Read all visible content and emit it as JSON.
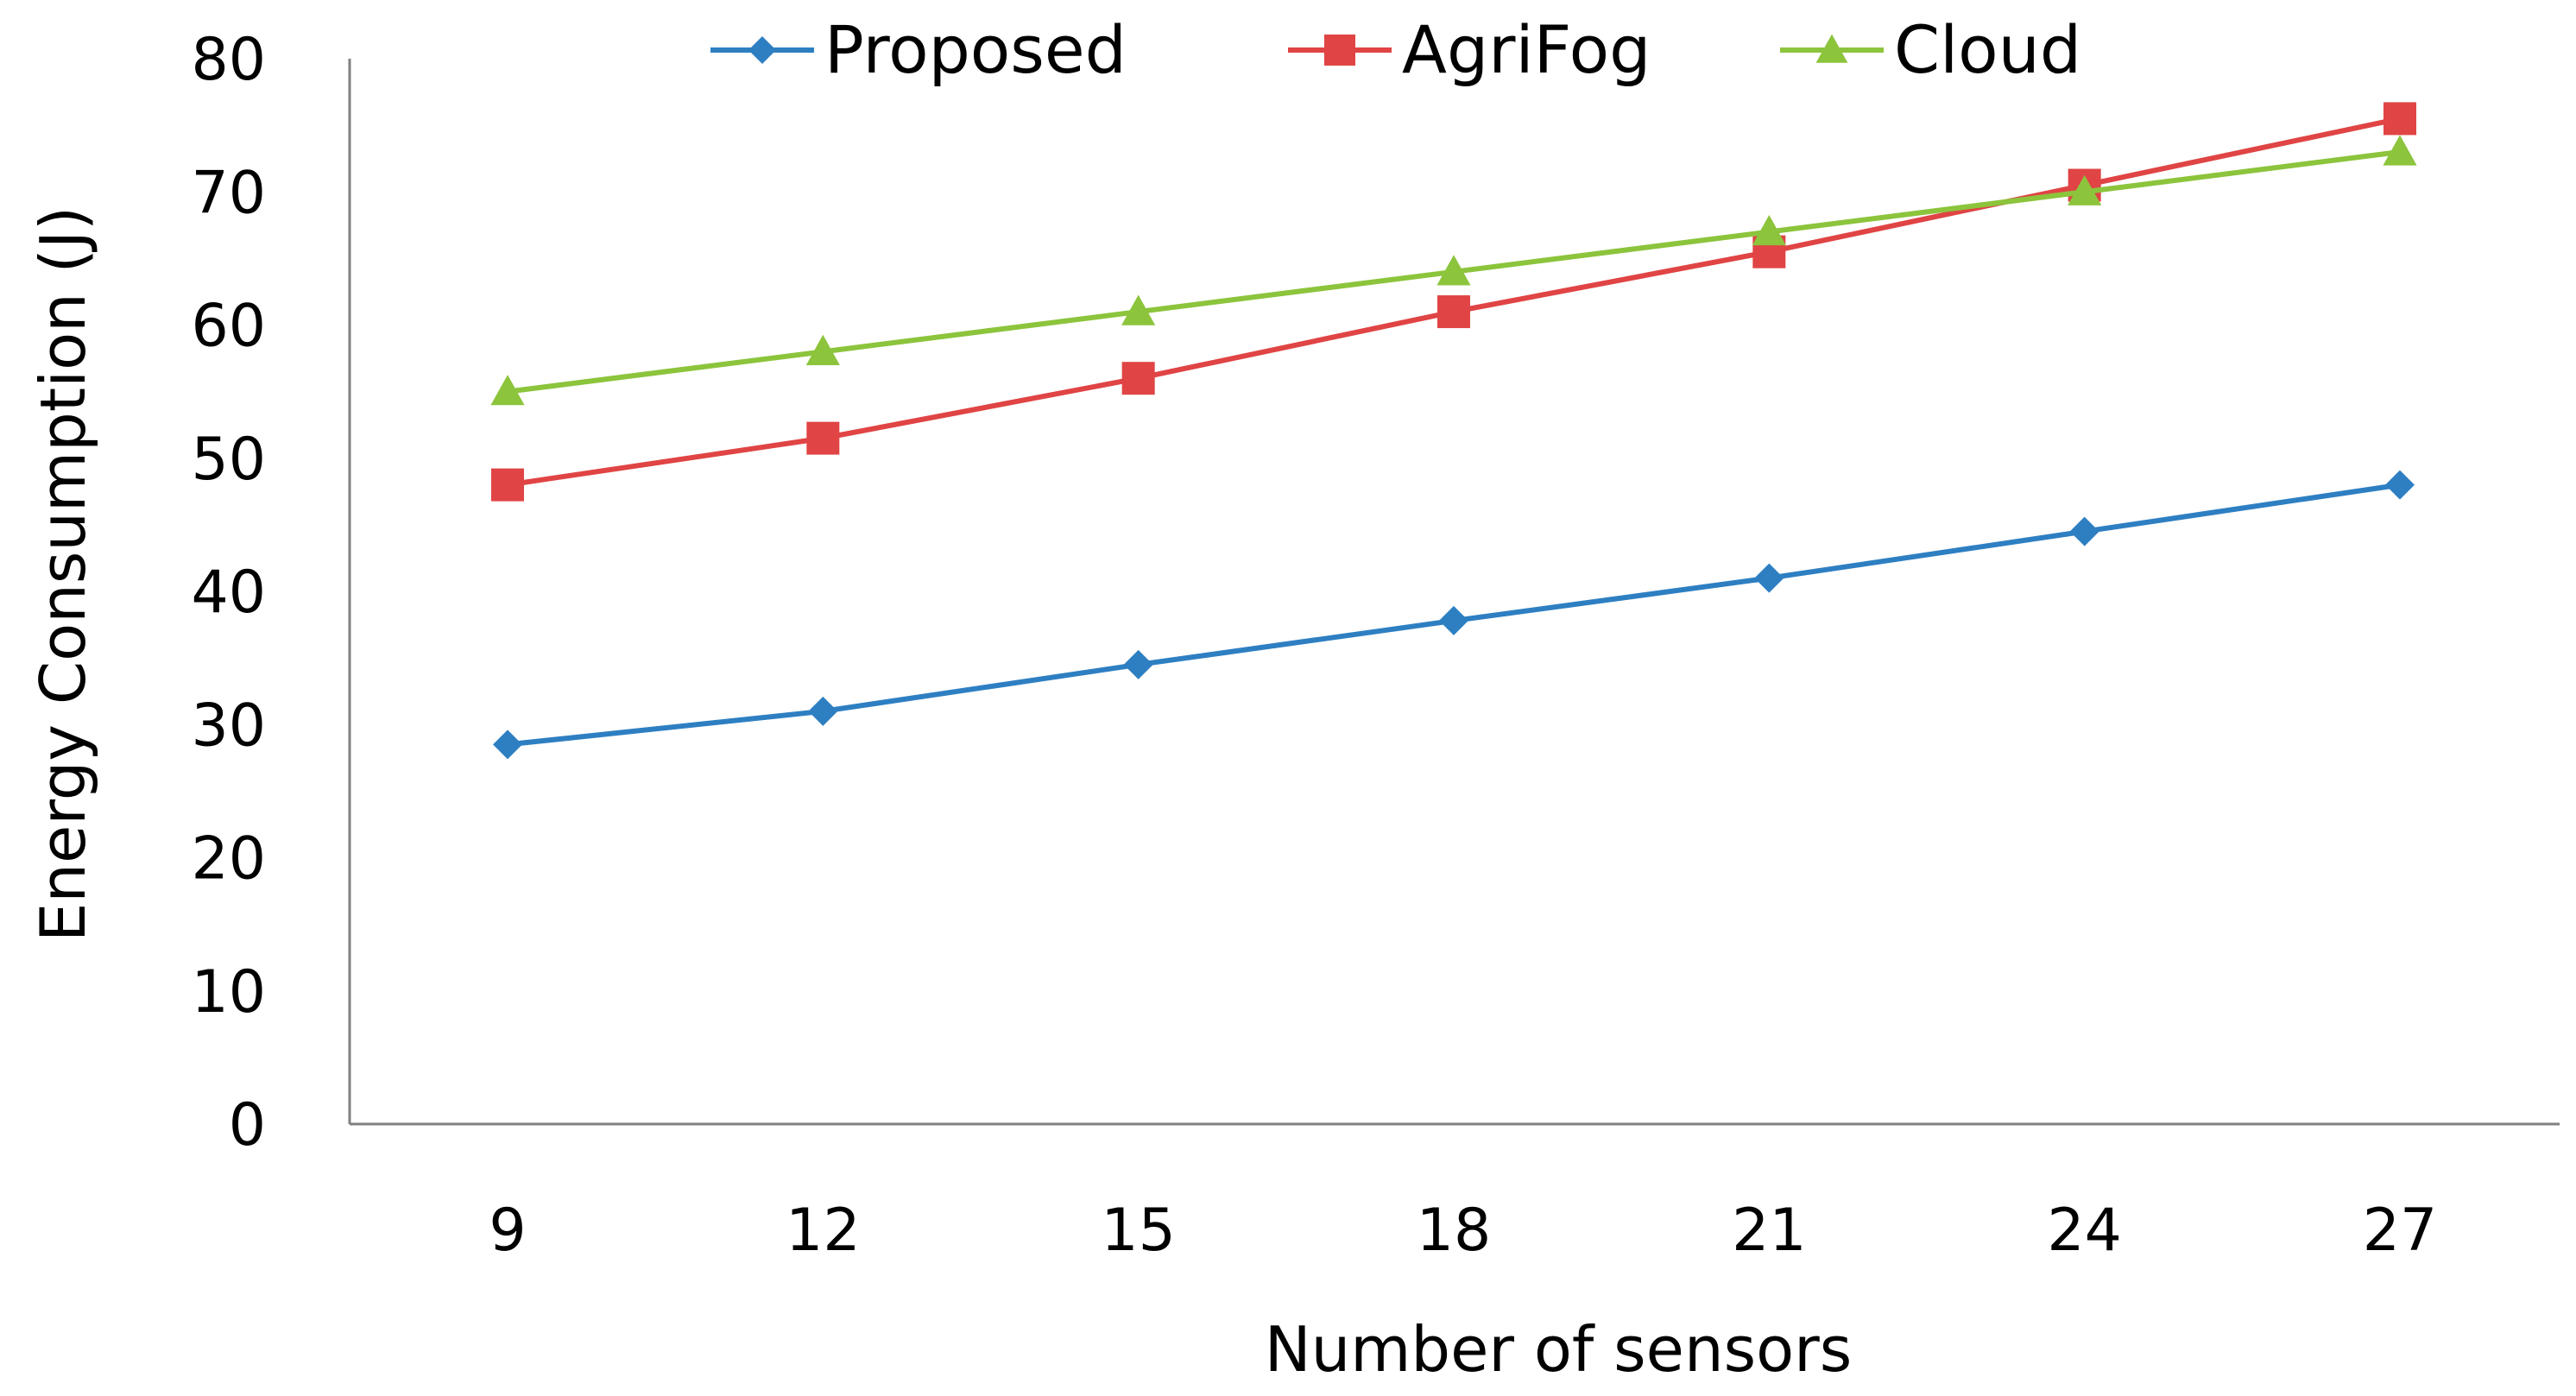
{
  "chart_data": {
    "type": "line",
    "xlabel": "Number of sensors",
    "ylabel": "Energy Consumption (J)",
    "x": [
      9,
      12,
      15,
      18,
      21,
      24,
      27
    ],
    "ylim": [
      0,
      80
    ],
    "yticks": [
      0,
      10,
      20,
      30,
      40,
      50,
      60,
      70,
      80
    ],
    "grid": false,
    "legend_position": "top",
    "series": [
      {
        "name": "Proposed",
        "color": "#2e7fc2",
        "marker": "diamond",
        "values": [
          28.5,
          31,
          34.5,
          37.8,
          41,
          44.5,
          48
        ]
      },
      {
        "name": "AgriFog",
        "color": "#e04444",
        "marker": "square",
        "values": [
          48,
          51.5,
          56,
          61,
          65.5,
          70.5,
          75.5
        ]
      },
      {
        "name": "Cloud",
        "color": "#8cc43c",
        "marker": "triangle",
        "values": [
          55,
          58,
          61,
          64,
          67,
          70,
          73
        ]
      }
    ]
  }
}
